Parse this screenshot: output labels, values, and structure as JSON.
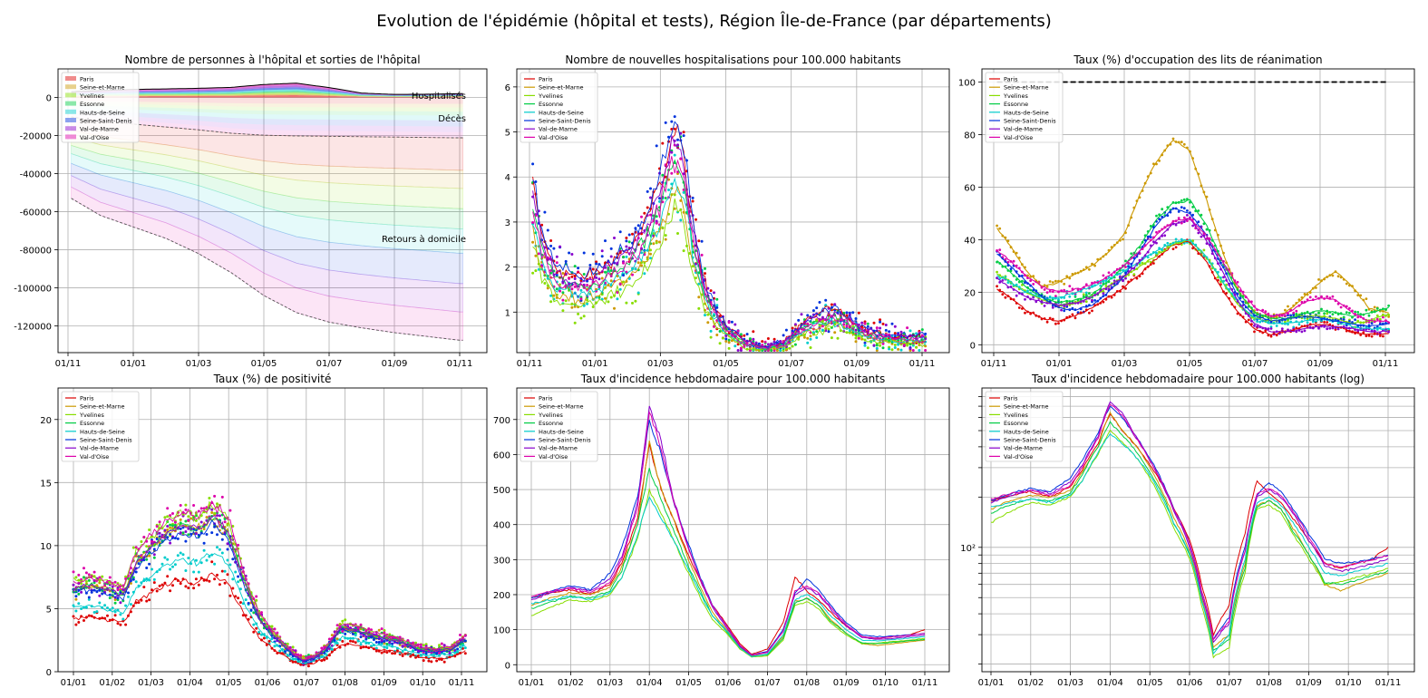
{
  "figure": {
    "title": "Evolution de l'épidémie (hôpital et tests), Région Île-de-France (par départements)"
  },
  "departments": [
    "Paris",
    "Seine-et-Marne",
    "Yvelines",
    "Essonne",
    "Hauts-de-Seine",
    "Seine-Saint-Denis",
    "Val-de-Marne",
    "Val-d'Oise"
  ],
  "colors": [
    "#dd0000",
    "#cc9900",
    "#88dd00",
    "#00cc44",
    "#00cccc",
    "#0033dd",
    "#8800cc",
    "#dd00aa"
  ],
  "chart_data": [
    {
      "type": "area",
      "title": "Nombre de personnes à l'hôpital et sorties de l'hôpital",
      "annotations": [
        "Hospitalisés",
        "Décès",
        "Retours à domicile"
      ],
      "xticks": [
        "01/11",
        "01/01",
        "01/03",
        "01/05",
        "01/07",
        "01/09",
        "01/11"
      ],
      "yticks": [
        0,
        -20000,
        -40000,
        -60000,
        -80000,
        -100000,
        -120000
      ],
      "ylim": [
        -134000,
        15000
      ],
      "grid": true,
      "legend": "top-left",
      "x_months": [
        0,
        1,
        2,
        3,
        4,
        5,
        6,
        7,
        8,
        9,
        10,
        11,
        12
      ],
      "hospitalized_total": [
        3000,
        3600,
        4200,
        4500,
        4800,
        5300,
        6800,
        7500,
        5200,
        2300,
        1600,
        1700,
        2000
      ],
      "deaths_cumulative_negative": [
        -10000,
        -12500,
        -14000,
        -15500,
        -17000,
        -18800,
        -19800,
        -20200,
        -20400,
        -20600,
        -20800,
        -21000,
        -21200
      ],
      "total_outflow_negative": [
        -52000,
        -62000,
        -68000,
        -74000,
        -82000,
        -92000,
        -104000,
        -113000,
        -118000,
        -121000,
        -123500,
        -125500,
        -127500
      ]
    },
    {
      "type": "scatter",
      "title": "Nombre de nouvelles hospitalisations pour 100.000 habitants",
      "xticks": [
        "01/11",
        "01/01",
        "01/03",
        "01/05",
        "01/07",
        "01/09",
        "01/11"
      ],
      "yticks": [
        1,
        2,
        3,
        4,
        5,
        6
      ],
      "ylim": [
        0.1,
        6.4
      ],
      "grid": true,
      "legend": "top-left",
      "x_months": [
        0,
        0.1,
        0.4,
        0.8,
        1.2,
        1.6,
        2.0,
        2.4,
        2.8,
        3.2,
        3.5,
        3.8,
        4.1,
        4.4,
        4.7,
        5.0,
        5.4,
        6.0,
        6.6,
        7.2,
        7.8,
        8.3,
        8.8,
        9.3,
        9.8,
        10.3,
        10.8,
        11.3,
        11.8,
        12.3
      ],
      "base_values": [
        3.6,
        3.3,
        2.3,
        1.7,
        1.6,
        1.5,
        1.6,
        1.8,
        2.0,
        2.2,
        2.5,
        3.0,
        3.6,
        4.4,
        4.0,
        2.5,
        1.3,
        0.6,
        0.3,
        0.2,
        0.3,
        0.6,
        0.8,
        0.9,
        0.7,
        0.5,
        0.45,
        0.4,
        0.4,
        0.4
      ],
      "dept_factors": [
        1.15,
        0.85,
        0.75,
        1.0,
        0.9,
        1.2,
        1.1,
        1.0
      ]
    },
    {
      "type": "line",
      "title": "Taux (%) d'occupation des lits de réanimation",
      "xticks": [
        "01/11",
        "01/01",
        "01/03",
        "01/05",
        "01/07",
        "01/09",
        "01/11"
      ],
      "yticks": [
        0,
        20,
        40,
        60,
        80,
        100
      ],
      "ylim": [
        -3,
        105
      ],
      "reference_line": 100,
      "grid": true,
      "legend": "top-left",
      "x_months": [
        0,
        0.5,
        1,
        1.5,
        2,
        2.5,
        3,
        3.5,
        4,
        4.5,
        5,
        5.5,
        6,
        6.5,
        7,
        7.5,
        8,
        8.5,
        9,
        9.5,
        10,
        10.5,
        11,
        11.5,
        12.1
      ],
      "series": [
        {
          "name": "Paris",
          "values": [
            22,
            18,
            13,
            10,
            9,
            11,
            14,
            18,
            22,
            27,
            33,
            38,
            39,
            32,
            21,
            12,
            6,
            4,
            5,
            7,
            8,
            7,
            5,
            4,
            4
          ]
        },
        {
          "name": "Seine-et-Marne",
          "values": [
            46,
            38,
            28,
            22,
            24,
            27,
            30,
            35,
            42,
            58,
            70,
            78,
            74,
            56,
            36,
            20,
            12,
            10,
            13,
            18,
            24,
            28,
            22,
            14,
            12
          ]
        },
        {
          "name": "Yvelines",
          "values": [
            28,
            24,
            20,
            17,
            15,
            16,
            18,
            22,
            26,
            30,
            34,
            38,
            40,
            34,
            24,
            15,
            10,
            9,
            10,
            11,
            11,
            10,
            8,
            9,
            12
          ]
        },
        {
          "name": "Essonne",
          "values": [
            33,
            28,
            22,
            18,
            16,
            17,
            19,
            24,
            30,
            38,
            48,
            54,
            55,
            46,
            32,
            20,
            12,
            10,
            10,
            12,
            13,
            12,
            11,
            12,
            14
          ]
        },
        {
          "name": "Hauts-de-Seine",
          "values": [
            27,
            24,
            20,
            18,
            18,
            20,
            22,
            25,
            28,
            32,
            36,
            39,
            40,
            34,
            24,
            16,
            10,
            8,
            8,
            9,
            10,
            9,
            7,
            6,
            6
          ]
        },
        {
          "name": "Seine-Saint-Denis",
          "values": [
            36,
            30,
            24,
            18,
            14,
            13,
            15,
            20,
            26,
            36,
            46,
            52,
            50,
            42,
            30,
            18,
            11,
            9,
            10,
            11,
            10,
            9,
            8,
            7,
            8
          ]
        },
        {
          "name": "Val-de-Marne",
          "values": [
            26,
            22,
            18,
            16,
            15,
            16,
            18,
            22,
            26,
            32,
            40,
            46,
            48,
            40,
            28,
            16,
            8,
            5,
            5,
            6,
            7,
            7,
            6,
            5,
            5
          ]
        },
        {
          "name": "Val-d'Oise",
          "values": [
            37,
            32,
            26,
            22,
            20,
            21,
            23,
            26,
            30,
            36,
            42,
            47,
            48,
            42,
            32,
            22,
            14,
            11,
            12,
            16,
            18,
            17,
            12,
            9,
            9
          ]
        }
      ]
    },
    {
      "type": "scatter",
      "title": "Taux (%) de positivité",
      "xticks": [
        "01/01",
        "01/02",
        "01/03",
        "01/04",
        "01/05",
        "01/06",
        "01/07",
        "01/08",
        "01/09",
        "01/10",
        "01/11"
      ],
      "yticks": [
        0,
        5,
        10,
        15,
        20
      ],
      "ylim": [
        0,
        22.5
      ],
      "grid": true,
      "legend": "top-left",
      "x_months": [
        0,
        0.5,
        1,
        1.3,
        1.6,
        2,
        2.4,
        2.8,
        3.2,
        3.6,
        4,
        4.4,
        4.8,
        5.2,
        5.6,
        5.9,
        6.2,
        6.5,
        6.9,
        7.3,
        7.7,
        8.1,
        8.5,
        8.9,
        9.3,
        9.7,
        10.1
      ],
      "base_values": [
        6.0,
        6.2,
        5.8,
        5.5,
        7.8,
        9.0,
        10.0,
        10.5,
        10.2,
        11.2,
        10.0,
        6.5,
        3.8,
        2.5,
        1.4,
        0.8,
        1.0,
        1.6,
        3.2,
        3.0,
        2.6,
        2.4,
        2.1,
        1.6,
        1.5,
        1.6,
        2.4
      ],
      "dept_factors": [
        0.7,
        1.1,
        1.2,
        1.1,
        0.85,
        1.05,
        1.1,
        1.2
      ]
    },
    {
      "type": "line",
      "title": "Taux d'incidence hebdomadaire pour 100.000 habitants",
      "xticks": [
        "01/01",
        "01/02",
        "01/03",
        "01/04",
        "01/05",
        "01/06",
        "01/07",
        "01/08",
        "01/09",
        "01/10",
        "01/11"
      ],
      "yticks": [
        0,
        100,
        200,
        300,
        400,
        500,
        600,
        700
      ],
      "ylim": [
        -20,
        790
      ],
      "grid": true,
      "legend": "top-left",
      "x_months": [
        0,
        0.5,
        1,
        1.5,
        2,
        2.3,
        2.7,
        3,
        3.3,
        3.6,
        4,
        4.3,
        4.6,
        5,
        5.3,
        5.6,
        6,
        6.4,
        6.7,
        7,
        7.3,
        7.6,
        8,
        8.4,
        8.8,
        9.2,
        9.6,
        10
      ],
      "series": [
        {
          "name": "Paris",
          "values": [
            190,
            205,
            215,
            200,
            230,
            290,
            420,
            630,
            500,
            420,
            310,
            240,
            170,
            110,
            60,
            30,
            45,
            120,
            250,
            210,
            185,
            150,
            110,
            80,
            75,
            80,
            85,
            100
          ]
        },
        {
          "name": "Seine-et-Marne",
          "values": [
            170,
            190,
            205,
            200,
            220,
            280,
            400,
            640,
            500,
            420,
            300,
            220,
            150,
            95,
            50,
            25,
            30,
            80,
            180,
            190,
            170,
            130,
            90,
            60,
            55,
            60,
            65,
            70
          ]
        },
        {
          "name": "Yvelines",
          "values": [
            140,
            165,
            185,
            180,
            200,
            250,
            360,
            500,
            430,
            360,
            260,
            190,
            130,
            85,
            45,
            22,
            25,
            70,
            170,
            180,
            160,
            120,
            85,
            60,
            62,
            66,
            70,
            75
          ]
        },
        {
          "name": "Essonne",
          "values": [
            160,
            180,
            195,
            190,
            210,
            270,
            400,
            560,
            470,
            390,
            280,
            210,
            140,
            90,
            48,
            24,
            28,
            75,
            175,
            190,
            170,
            125,
            90,
            62,
            60,
            64,
            68,
            72
          ]
        },
        {
          "name": "Hauts-de-Seine",
          "values": [
            175,
            185,
            195,
            185,
            205,
            250,
            370,
            480,
            420,
            360,
            270,
            200,
            140,
            92,
            48,
            23,
            30,
            85,
            185,
            200,
            180,
            140,
            100,
            70,
            68,
            72,
            76,
            80
          ]
        },
        {
          "name": "Seine-Saint-Denis",
          "values": [
            190,
            210,
            225,
            215,
            260,
            330,
            480,
            700,
            600,
            470,
            340,
            250,
            170,
            105,
            55,
            28,
            38,
            100,
            205,
            245,
            215,
            170,
            120,
            85,
            80,
            82,
            85,
            90
          ]
        },
        {
          "name": "Val-de-Marne",
          "values": [
            185,
            205,
            220,
            210,
            245,
            310,
            460,
            740,
            640,
            480,
            330,
            240,
            165,
            100,
            52,
            27,
            35,
            95,
            200,
            220,
            200,
            160,
            110,
            78,
            72,
            75,
            80,
            85
          ]
        },
        {
          "name": "Val-d'Oise",
          "values": [
            195,
            210,
            220,
            205,
            235,
            300,
            450,
            720,
            620,
            470,
            330,
            245,
            170,
            105,
            55,
            28,
            36,
            95,
            210,
            225,
            205,
            165,
            115,
            80,
            76,
            80,
            84,
            90
          ]
        }
      ]
    },
    {
      "type": "line",
      "title": "Taux d'incidence hebdomadaire pour 100.000 habitants (log)",
      "xticks": [
        "01/01",
        "01/02",
        "01/03",
        "01/04",
        "01/05",
        "01/06",
        "01/07",
        "01/08",
        "01/09",
        "01/10",
        "01/11"
      ],
      "ytick_label": "10²",
      "yscale": "log",
      "ylim": [
        18,
        900
      ],
      "grid": true,
      "legend": "top-left"
    }
  ]
}
